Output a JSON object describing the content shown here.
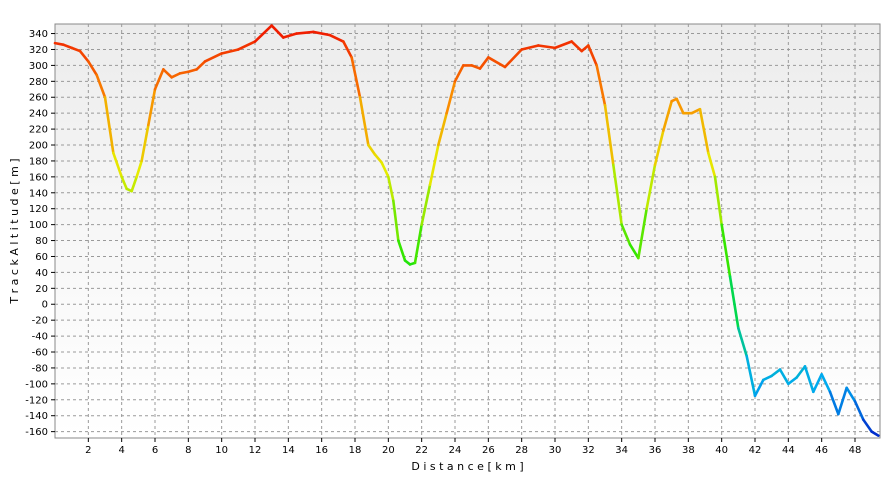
{
  "chart_data": {
    "type": "line",
    "xlabel": "D i s t a n c e   [ k m ]",
    "ylabel": "T r a c k   A l t i t u d e   [ m ]",
    "xlim": [
      0,
      49.5
    ],
    "ylim": [
      -168,
      352
    ],
    "x_ticks": [
      2,
      4,
      6,
      8,
      10,
      12,
      14,
      16,
      18,
      20,
      22,
      24,
      26,
      28,
      30,
      32,
      34,
      36,
      38,
      40,
      42,
      44,
      46,
      48
    ],
    "y_ticks": [
      340,
      320,
      300,
      280,
      260,
      240,
      220,
      200,
      180,
      160,
      140,
      120,
      100,
      80,
      60,
      40,
      20,
      0,
      -20,
      -40,
      -60,
      -80,
      -100,
      -120,
      -140,
      -160
    ],
    "grid": true,
    "line_color_scale": "altitude gradient (blue = low, green, yellow, red = high)",
    "series": [
      {
        "x": [
          0,
          0.5,
          1,
          1.5,
          2,
          2.5,
          3,
          3.5,
          4,
          4.3,
          4.6,
          4.9,
          5.2,
          5.6,
          6,
          6.5,
          7,
          7.5,
          8,
          8.5,
          9,
          10,
          11,
          12,
          13,
          13.7,
          14.5,
          15.5,
          16.5,
          17.3,
          17.8,
          18.3,
          18.8,
          19.2,
          19.6,
          20,
          20.3,
          20.6,
          21,
          21.3,
          21.6,
          22,
          22.5,
          23,
          23.5,
          24,
          24.5,
          25,
          25.5,
          26,
          27,
          28,
          29,
          30,
          31,
          31.6,
          32,
          32.5,
          33,
          33.5,
          34,
          34.5,
          35,
          35.5,
          36,
          36.5,
          37,
          37.3,
          37.7,
          38.2,
          38.7,
          39.2,
          39.6,
          40,
          40.5,
          41,
          41.5,
          42,
          42.5,
          43,
          43.5,
          44,
          44.5,
          45,
          45.5,
          46,
          46.5,
          47,
          47.5,
          48,
          48.5,
          49,
          49.4
        ],
        "y": [
          328,
          326,
          322,
          318,
          305,
          288,
          260,
          190,
          160,
          145,
          142,
          160,
          180,
          225,
          270,
          295,
          285,
          290,
          292,
          295,
          305,
          315,
          320,
          330,
          350,
          335,
          340,
          342,
          338,
          330,
          310,
          260,
          200,
          188,
          178,
          160,
          130,
          80,
          55,
          50,
          52,
          100,
          150,
          200,
          240,
          280,
          300,
          300,
          296,
          310,
          298,
          320,
          325,
          322,
          330,
          318,
          325,
          300,
          250,
          175,
          100,
          75,
          58,
          120,
          175,
          218,
          255,
          258,
          240,
          240,
          245,
          190,
          160,
          100,
          35,
          -30,
          -65,
          -115,
          -95,
          -90,
          -82,
          -100,
          -92,
          -78,
          -110,
          -88,
          -110,
          -138,
          -105,
          -122,
          -145,
          -160,
          -165
        ]
      }
    ]
  }
}
